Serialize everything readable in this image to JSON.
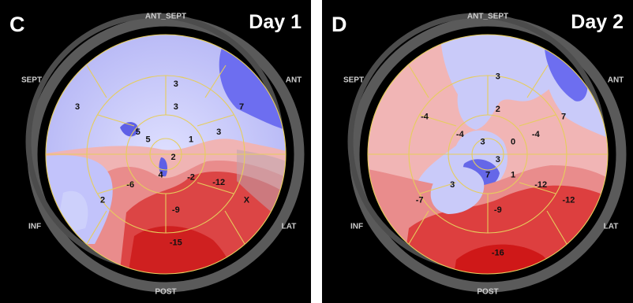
{
  "panels": [
    {
      "letter": "C",
      "day": "Day 1",
      "walls": {
        "top": "ANT_SEPT",
        "upper_left": "SEPT",
        "upper_right": "ANT",
        "lower_left": "INF",
        "lower_right": "LAT",
        "bottom": "POST"
      },
      "segments": [
        {
          "v": "3",
          "mx": 0.54,
          "my": 0.21
        },
        {
          "v": "7",
          "mx": 0.8,
          "my": 0.3
        },
        {
          "v": "3",
          "mx": 0.15,
          "my": 0.3
        },
        {
          "v": "3",
          "mx": 0.54,
          "my": 0.3
        },
        {
          "v": "5",
          "mx": 0.39,
          "my": 0.4
        },
        {
          "v": "5",
          "mx": 0.43,
          "my": 0.43
        },
        {
          "v": "1",
          "mx": 0.6,
          "my": 0.43
        },
        {
          "v": "3",
          "mx": 0.71,
          "my": 0.4
        },
        {
          "v": "2",
          "mx": 0.53,
          "my": 0.5
        },
        {
          "v": "4",
          "mx": 0.48,
          "my": 0.57
        },
        {
          "v": "-2",
          "mx": 0.6,
          "my": 0.58
        },
        {
          "v": "-6",
          "mx": 0.36,
          "my": 0.61
        },
        {
          "v": "-12",
          "mx": 0.71,
          "my": 0.6
        },
        {
          "v": "2",
          "mx": 0.25,
          "my": 0.67
        },
        {
          "v": "X",
          "mx": 0.82,
          "my": 0.67
        },
        {
          "v": "-9",
          "mx": 0.54,
          "my": 0.71
        },
        {
          "v": "-15",
          "mx": 0.54,
          "my": 0.84
        }
      ]
    },
    {
      "letter": "D",
      "day": "Day 2",
      "walls": {
        "top": "ANT_SEPT",
        "upper_left": "SEPT",
        "upper_right": "ANT",
        "lower_left": "INF",
        "lower_right": "LAT",
        "bottom": "POST"
      },
      "segments": [
        {
          "v": "3",
          "mx": 0.54,
          "my": 0.18
        },
        {
          "v": "7",
          "mx": 0.8,
          "my": 0.34
        },
        {
          "v": "-4",
          "mx": 0.25,
          "my": 0.34
        },
        {
          "v": "2",
          "mx": 0.54,
          "my": 0.31
        },
        {
          "v": "-4",
          "mx": 0.39,
          "my": 0.41
        },
        {
          "v": "-4",
          "mx": 0.69,
          "my": 0.41
        },
        {
          "v": "3",
          "mx": 0.48,
          "my": 0.44
        },
        {
          "v": "0",
          "mx": 0.6,
          "my": 0.44
        },
        {
          "v": "3",
          "mx": 0.54,
          "my": 0.51
        },
        {
          "v": "7",
          "mx": 0.5,
          "my": 0.57
        },
        {
          "v": "1",
          "mx": 0.6,
          "my": 0.57
        },
        {
          "v": "3",
          "mx": 0.36,
          "my": 0.61
        },
        {
          "v": "-12",
          "mx": 0.71,
          "my": 0.61
        },
        {
          "v": "-7",
          "mx": 0.23,
          "my": 0.67
        },
        {
          "v": "-12",
          "mx": 0.82,
          "my": 0.67
        },
        {
          "v": "-9",
          "mx": 0.54,
          "my": 0.71
        },
        {
          "v": "-16",
          "mx": 0.54,
          "my": 0.88
        }
      ]
    }
  ]
}
